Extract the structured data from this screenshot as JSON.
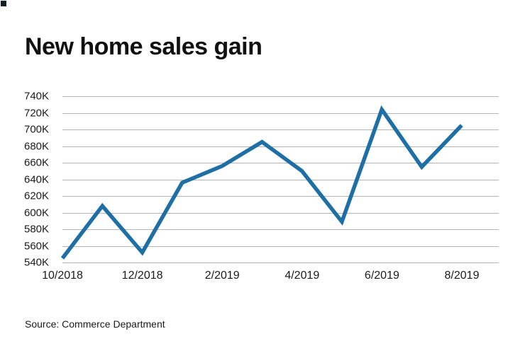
{
  "page": {
    "title": "New home sales gain",
    "source": "Source: Commerce Department"
  },
  "chart_data": {
    "type": "line",
    "title": "New home sales gain",
    "x": [
      "10/2018",
      "11/2018",
      "12/2018",
      "1/2019",
      "2/2019",
      "3/2019",
      "4/2019",
      "5/2019",
      "6/2019",
      "7/2019",
      "8/2019"
    ],
    "values": [
      545,
      608,
      552,
      636,
      656,
      685,
      650,
      589,
      724,
      655,
      705
    ],
    "unit": "K",
    "ylabel": "",
    "xlabel": "",
    "ylim": [
      540,
      740
    ],
    "yticks": [
      {
        "value": 740,
        "label": "740K"
      },
      {
        "value": 720,
        "label": "720K"
      },
      {
        "value": 700,
        "label": "700K"
      },
      {
        "value": 680,
        "label": "680K"
      },
      {
        "value": 660,
        "label": "660K"
      },
      {
        "value": 640,
        "label": "640K"
      },
      {
        "value": 620,
        "label": "620K"
      },
      {
        "value": 600,
        "label": "600K"
      },
      {
        "value": 580,
        "label": "580K"
      },
      {
        "value": 560,
        "label": "560K"
      },
      {
        "value": 540,
        "label": "540K"
      }
    ],
    "xticks": [
      {
        "index": 0,
        "label": "10/2018"
      },
      {
        "index": 2,
        "label": "12/2018"
      },
      {
        "index": 4,
        "label": "2/2019"
      },
      {
        "index": 6,
        "label": "4/2019"
      },
      {
        "index": 8,
        "label": "6/2019"
      },
      {
        "index": 10,
        "label": "8/2019"
      }
    ],
    "grid": true,
    "legend": "none",
    "line_color": "#1d6fa5",
    "source": "Commerce Department"
  }
}
